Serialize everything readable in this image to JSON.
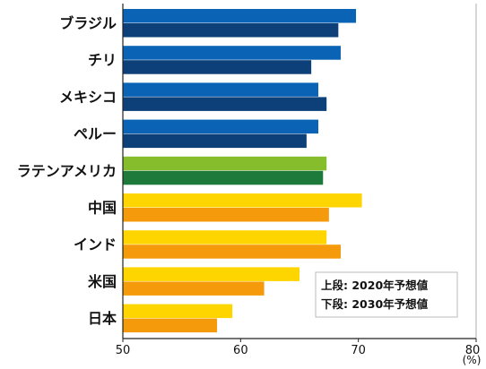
{
  "chart_data": {
    "type": "bar",
    "orientation": "horizontal",
    "categories": [
      "ブラジル",
      "チリ",
      "メキシコ",
      "ペルー",
      "ラテンアメリカ",
      "中国",
      "インド",
      "米国",
      "日本"
    ],
    "series": [
      {
        "name": "上段: 2020年予想値",
        "values": [
          69.8,
          68.5,
          66.6,
          66.6,
          67.3,
          70.3,
          67.3,
          65.0,
          59.3
        ]
      },
      {
        "name": "下段: 2030年予想値",
        "values": [
          68.3,
          66.0,
          67.3,
          65.6,
          67.0,
          67.5,
          68.5,
          62.0,
          58.0
        ]
      }
    ],
    "colors": {
      "top": [
        "#0a63b5",
        "#0a63b5",
        "#0a63b5",
        "#0a63b5",
        "#86bd2c",
        "#ffd500",
        "#ffd500",
        "#ffd500",
        "#ffd500"
      ],
      "bottom": [
        "#0d3f78",
        "#0d3f78",
        "#0d3f78",
        "#0d3f78",
        "#1d7a3a",
        "#f59a0b",
        "#f59a0b",
        "#f59a0b",
        "#f59a0b"
      ]
    },
    "x_ticks": [
      "50",
      "60",
      "70",
      "80"
    ],
    "xlim": [
      50,
      80
    ],
    "unit": "(%)",
    "legend": [
      "上段: 2020年予想値",
      "下段: 2030年予想値"
    ],
    "legend_position": "bottom-right",
    "grid": false
  }
}
